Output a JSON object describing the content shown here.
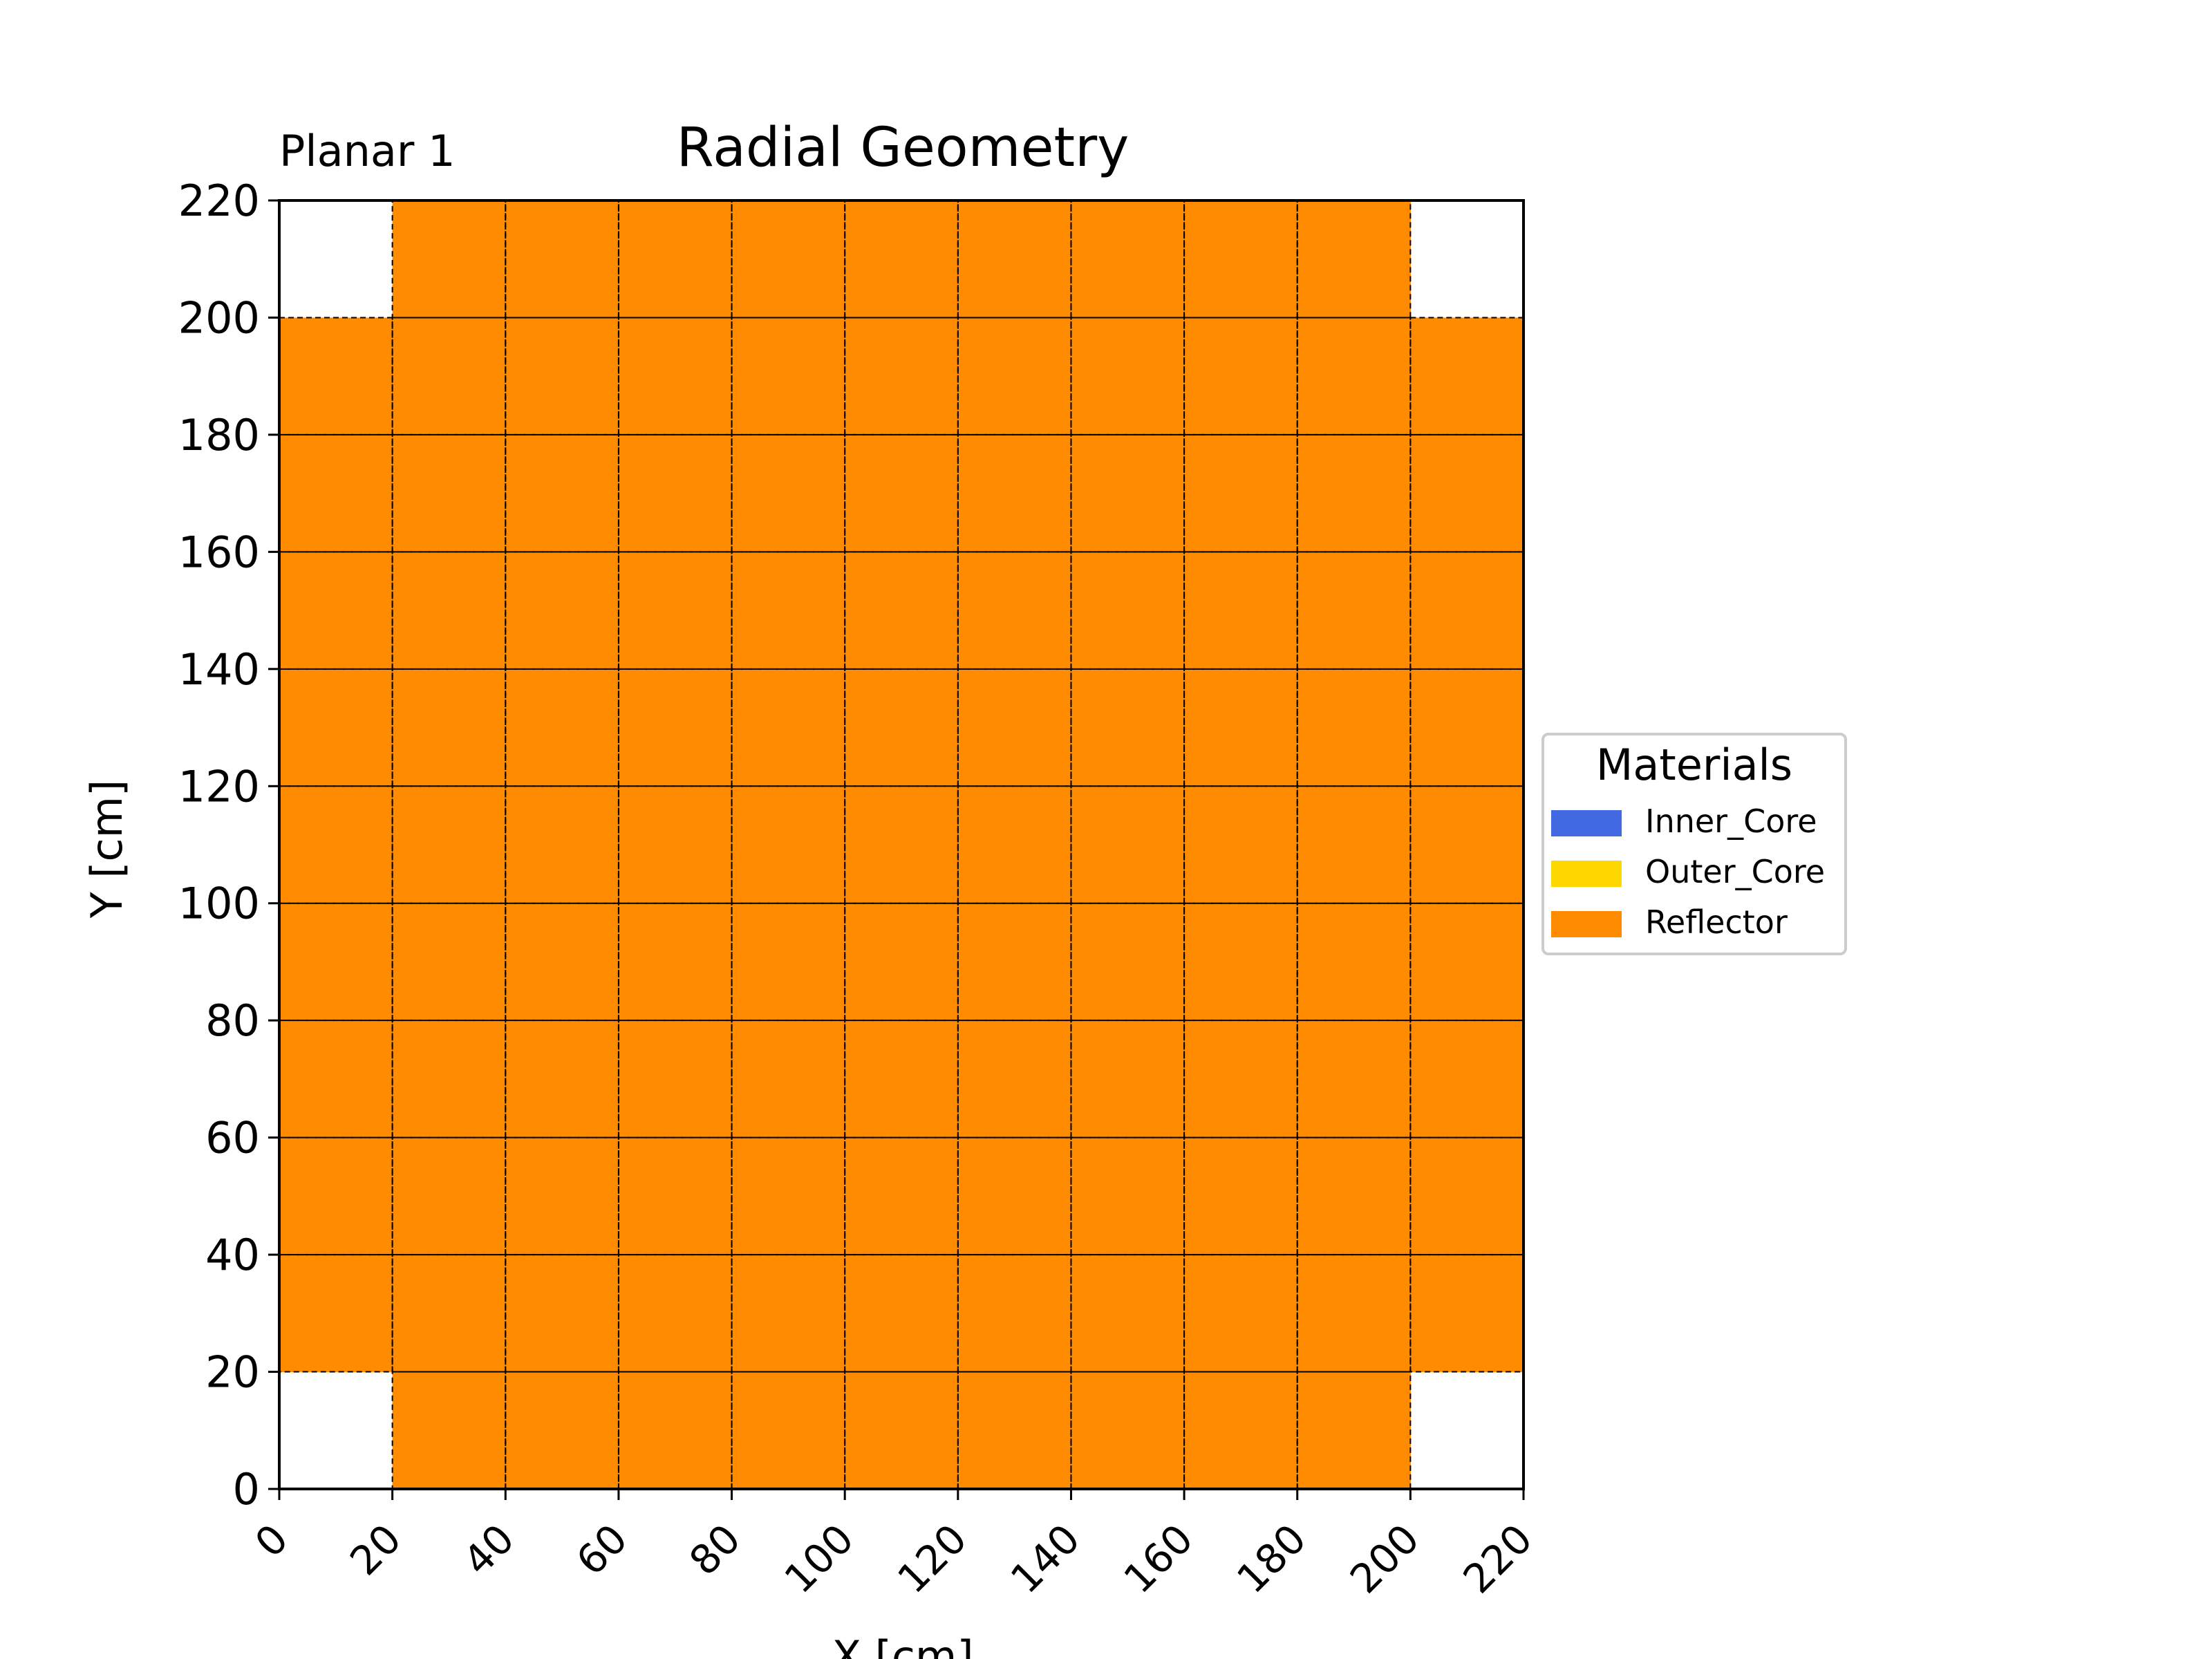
{
  "chart_data": {
    "type": "heatmap",
    "title": "Radial Geometry",
    "subtitle": "Planar 1",
    "xlabel": "X [cm]",
    "ylabel": "Y [cm]",
    "xlim": [
      0,
      220
    ],
    "ylim": [
      0,
      220
    ],
    "cell_size": 20,
    "x_ticks": [
      0,
      20,
      40,
      60,
      80,
      100,
      120,
      140,
      160,
      180,
      200,
      220
    ],
    "y_ticks": [
      0,
      20,
      40,
      60,
      80,
      100,
      120,
      140,
      160,
      180,
      200,
      220
    ],
    "grid": true,
    "legend": {
      "title": "Materials",
      "placement": "center-right",
      "entries": [
        {
          "name": "Inner_Core",
          "color": "#4169e1"
        },
        {
          "name": "Outer_Core",
          "color": "#ffd700"
        },
        {
          "name": "Reflector",
          "color": "#ff8c00"
        }
      ]
    },
    "grid_rows_top_to_bottom": [
      [
        "",
        "Reflector",
        "Reflector",
        "Reflector",
        "Reflector",
        "Reflector",
        "Reflector",
        "Reflector",
        "Reflector",
        "Reflector",
        ""
      ],
      [
        "Reflector",
        "Reflector",
        "Reflector",
        "Reflector",
        "Reflector",
        "Reflector",
        "Reflector",
        "Reflector",
        "Reflector",
        "Reflector",
        "Reflector"
      ],
      [
        "Reflector",
        "Reflector",
        "Reflector",
        "Reflector",
        "Reflector",
        "Reflector",
        "Reflector",
        "Reflector",
        "Reflector",
        "Reflector",
        "Reflector"
      ],
      [
        "Reflector",
        "Reflector",
        "Reflector",
        "Reflector",
        "Reflector",
        "Reflector",
        "Reflector",
        "Reflector",
        "Reflector",
        "Reflector",
        "Reflector"
      ],
      [
        "Reflector",
        "Reflector",
        "Reflector",
        "Reflector",
        "Reflector",
        "Reflector",
        "Reflector",
        "Reflector",
        "Reflector",
        "Reflector",
        "Reflector"
      ],
      [
        "Reflector",
        "Reflector",
        "Reflector",
        "Reflector",
        "Reflector",
        "Reflector",
        "Reflector",
        "Reflector",
        "Reflector",
        "Reflector",
        "Reflector"
      ],
      [
        "Reflector",
        "Reflector",
        "Reflector",
        "Reflector",
        "Reflector",
        "Reflector",
        "Reflector",
        "Reflector",
        "Reflector",
        "Reflector",
        "Reflector"
      ],
      [
        "Reflector",
        "Reflector",
        "Reflector",
        "Reflector",
        "Reflector",
        "Reflector",
        "Reflector",
        "Reflector",
        "Reflector",
        "Reflector",
        "Reflector"
      ],
      [
        "Reflector",
        "Reflector",
        "Reflector",
        "Reflector",
        "Reflector",
        "Reflector",
        "Reflector",
        "Reflector",
        "Reflector",
        "Reflector",
        "Reflector"
      ],
      [
        "Reflector",
        "Reflector",
        "Reflector",
        "Reflector",
        "Reflector",
        "Reflector",
        "Reflector",
        "Reflector",
        "Reflector",
        "Reflector",
        "Reflector"
      ],
      [
        "",
        "Reflector",
        "Reflector",
        "Reflector",
        "Reflector",
        "Reflector",
        "Reflector",
        "Reflector",
        "Reflector",
        "Reflector",
        ""
      ]
    ]
  }
}
